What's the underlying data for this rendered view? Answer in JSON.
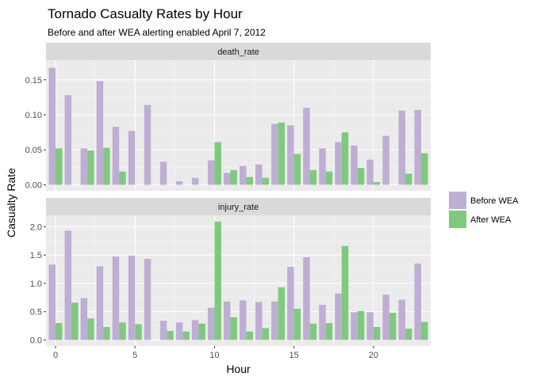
{
  "chart_data": {
    "type": "bar",
    "title": "Tornado Casualty Rates by Hour",
    "subtitle": "Before and after WEA alerting enabled April 7, 2012",
    "xlabel": "Hour",
    "ylabel": "Casualty Rate",
    "x_ticks": [
      "0",
      "5",
      "10",
      "15",
      "20"
    ],
    "x_tick_values": [
      0,
      5,
      10,
      15,
      20
    ],
    "xlim": [
      -0.6,
      23.6
    ],
    "legend": {
      "position": "right",
      "entries": [
        {
          "label": "Before WEA",
          "color": "#beaed4"
        },
        {
          "label": "After WEA",
          "color": "#7fc97f"
        }
      ]
    },
    "grid": true,
    "panel_background": "#ebebeb",
    "strip_background": "#d9d9d9",
    "facets": [
      {
        "name": "death_rate",
        "ylim": [
          -0.0085,
          0.178
        ],
        "y_ticks": [
          "0.00",
          "0.05",
          "0.10",
          "0.15"
        ],
        "y_tick_values": [
          0,
          0.05,
          0.1,
          0.15
        ],
        "x": [
          0,
          1,
          2,
          3,
          4,
          5,
          6,
          7,
          8,
          9,
          10,
          11,
          12,
          13,
          14,
          15,
          16,
          17,
          18,
          19,
          20,
          21,
          22,
          23
        ],
        "series": [
          {
            "name": "Before WEA",
            "values": [
              0.167,
              0.128,
              0.052,
              0.148,
              0.083,
              0.077,
              0.114,
              0.033,
              0.005,
              0.01,
              0.035,
              0.017,
              0.027,
              0.029,
              0.087,
              0.085,
              0.11,
              0.052,
              0.061,
              0.056,
              0.036,
              0.07,
              0.106,
              0.107
            ]
          },
          {
            "name": "After WEA",
            "values": [
              0.052,
              0.0,
              0.049,
              0.053,
              0.019,
              0.0,
              0.0,
              0.0,
              0.0,
              0.0,
              0.061,
              0.021,
              0.011,
              0.01,
              0.089,
              0.044,
              0.021,
              0.019,
              0.075,
              0.024,
              0.004,
              0.0,
              0.016,
              0.045
            ]
          }
        ]
      },
      {
        "name": "injury_rate",
        "ylim": [
          -0.105,
          2.2
        ],
        "y_ticks": [
          "0.0",
          "0.5",
          "1.0",
          "1.5",
          "2.0"
        ],
        "y_tick_values": [
          0,
          0.5,
          1.0,
          1.5,
          2.0
        ],
        "x": [
          0,
          1,
          2,
          3,
          4,
          5,
          6,
          7,
          8,
          9,
          10,
          11,
          12,
          13,
          14,
          15,
          16,
          17,
          18,
          19,
          20,
          21,
          22,
          23
        ],
        "series": [
          {
            "name": "Before WEA",
            "values": [
              1.33,
              1.93,
              0.74,
              1.3,
              1.47,
              1.49,
              1.43,
              0.34,
              0.31,
              0.35,
              0.57,
              0.68,
              0.7,
              0.67,
              0.68,
              1.29,
              1.46,
              0.62,
              0.82,
              0.49,
              0.49,
              0.8,
              0.71,
              1.35
            ]
          },
          {
            "name": "After WEA",
            "values": [
              0.3,
              0.66,
              0.38,
              0.23,
              0.31,
              0.28,
              0.0,
              0.16,
              0.15,
              0.29,
              2.09,
              0.4,
              0.15,
              0.21,
              0.93,
              0.55,
              0.29,
              0.3,
              1.66,
              0.51,
              0.23,
              0.48,
              0.2,
              0.32
            ]
          }
        ]
      }
    ]
  }
}
